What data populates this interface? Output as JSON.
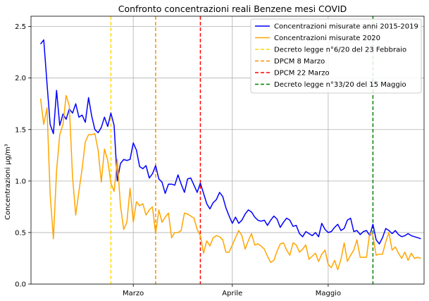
{
  "chart_data": {
    "type": "line",
    "title": "Confronto concentrazioni reali Benzene mesi COVID",
    "xlabel": "",
    "ylabel": "Concentrazioni μg/m³",
    "x_start": "2020-01-29",
    "x_end": "2020-05-31",
    "ylim": [
      0,
      2.6
    ],
    "yticks": [
      0,
      0.5,
      1.0,
      1.5,
      2.0,
      2.5
    ],
    "ytick_labels": [
      "0.0",
      "0.5",
      "1.0",
      "1.5",
      "2.0",
      "2.5"
    ],
    "xticks": [
      {
        "date": "2020-03-01",
        "label": "Marzo"
      },
      {
        "date": "2020-04-01",
        "label": "Aprile"
      },
      {
        "date": "2020-05-01",
        "label": "Maggio"
      }
    ],
    "grid": true,
    "legend_position": "upper-right",
    "series": [
      {
        "name": "Concentrazioni misurate anni 2015-2019",
        "color": "#0000ff",
        "start_date": "2020-02-01",
        "values": [
          2.33,
          2.37,
          1.95,
          1.55,
          1.46,
          1.88,
          1.54,
          1.65,
          1.6,
          1.7,
          1.66,
          1.75,
          1.62,
          1.64,
          1.57,
          1.81,
          1.63,
          1.5,
          1.47,
          1.52,
          1.62,
          1.53,
          1.66,
          1.54,
          1.0,
          1.17,
          1.21,
          1.2,
          1.21,
          1.37,
          1.3,
          1.14,
          1.12,
          1.15,
          1.03,
          1.07,
          1.15,
          1.02,
          0.99,
          0.88,
          0.97,
          0.97,
          0.96,
          1.06,
          0.97,
          0.89,
          1.02,
          1.03,
          0.96,
          0.89,
          0.98,
          0.88,
          0.78,
          0.73,
          0.79,
          0.82,
          0.89,
          0.85,
          0.74,
          0.66,
          0.59,
          0.65,
          0.59,
          0.62,
          0.68,
          0.72,
          0.7,
          0.65,
          0.62,
          0.61,
          0.62,
          0.57,
          0.62,
          0.66,
          0.63,
          0.55,
          0.6,
          0.64,
          0.62,
          0.56,
          0.57,
          0.49,
          0.46,
          0.51,
          0.49,
          0.47,
          0.5,
          0.46,
          0.59,
          0.53,
          0.5,
          0.51,
          0.55,
          0.58,
          0.52,
          0.54,
          0.62,
          0.64,
          0.51,
          0.52,
          0.48,
          0.51,
          0.52,
          0.47,
          0.58,
          0.43,
          0.39,
          0.45,
          0.54,
          0.52,
          0.49,
          0.52,
          0.48,
          0.46,
          0.47,
          0.49,
          0.47,
          0.46,
          0.45,
          0.44
        ]
      },
      {
        "name": "Concentrazioni misurate 2020",
        "color": "#ffa500",
        "start_date": "2020-02-01",
        "values": [
          1.8,
          1.55,
          1.71,
          0.87,
          0.44,
          1.1,
          1.45,
          1.55,
          1.83,
          1.73,
          1.04,
          0.67,
          0.9,
          1.12,
          1.38,
          1.45,
          1.45,
          1.46,
          1.3,
          0.99,
          1.31,
          1.2,
          0.98,
          0.9,
          1.21,
          0.76,
          0.53,
          0.6,
          0.93,
          0.6,
          0.8,
          0.76,
          0.78,
          0.67,
          0.72,
          0.75,
          0.49,
          0.72,
          0.6,
          0.65,
          0.69,
          0.45,
          0.5,
          0.5,
          0.52,
          0.69,
          0.68,
          0.66,
          0.64,
          0.53,
          0.47,
          0.3,
          0.42,
          0.37,
          0.45,
          0.47,
          0.46,
          0.43,
          0.31,
          0.31,
          0.38,
          0.45,
          0.52,
          0.47,
          0.34,
          0.42,
          0.49,
          0.38,
          0.39,
          0.37,
          0.34,
          0.27,
          0.21,
          0.23,
          0.32,
          0.39,
          0.4,
          0.33,
          0.28,
          0.4,
          0.38,
          0.31,
          0.34,
          0.38,
          0.24,
          0.27,
          0.3,
          0.22,
          0.29,
          0.33,
          0.19,
          0.16,
          0.23,
          0.14,
          0.24,
          0.4,
          0.22,
          0.28,
          0.33,
          0.43,
          0.26,
          0.26,
          0.26,
          0.5,
          0.47,
          0.28,
          0.29,
          0.29,
          0.41,
          0.5,
          0.33,
          0.36,
          0.3,
          0.25,
          0.31,
          0.23,
          0.3,
          0.25,
          0.26,
          0.25
        ]
      }
    ],
    "vlines": [
      {
        "name": "Decreto legge n°6/20 del 23 Febbraio",
        "date": "2020-02-23",
        "color": "#ffd700"
      },
      {
        "name": "DPCM 8 Marzo",
        "date": "2020-03-08",
        "color": "#ff8c00"
      },
      {
        "name": "DPCM 22 Marzo",
        "date": "2020-03-22",
        "color": "#ff0000"
      },
      {
        "name": "Decreto legge n°33/20 del 15 Maggio",
        "date": "2020-05-15",
        "color": "#008000"
      }
    ]
  }
}
